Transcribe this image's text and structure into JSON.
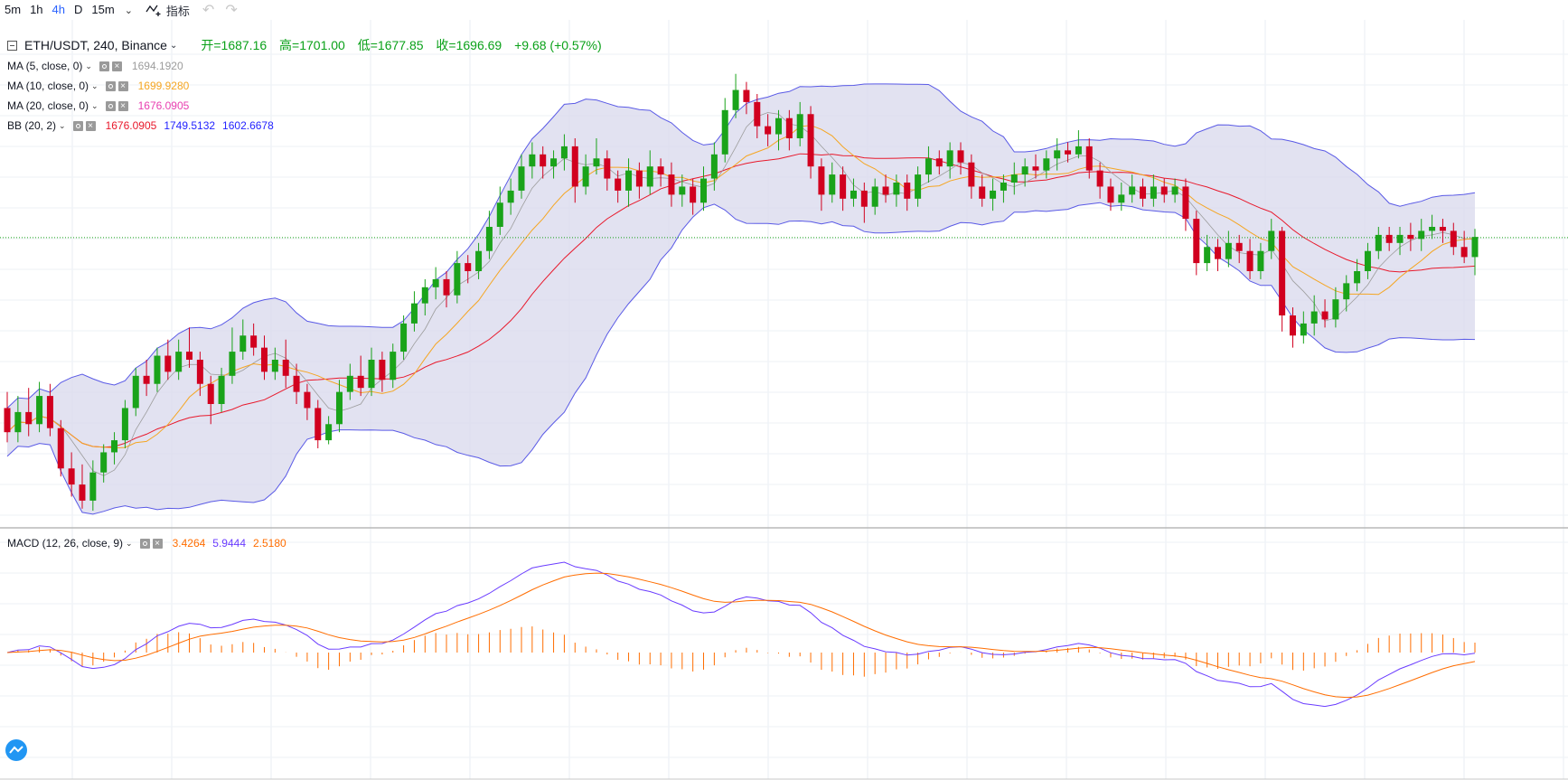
{
  "toolbar": {
    "intervals": [
      "5m",
      "1h",
      "4h",
      "D",
      "15m"
    ],
    "active_interval": "4h",
    "indicators_label": "指标"
  },
  "legend": {
    "symbol": "ETH/USDT, 240, Binance",
    "open": "开=1687.16",
    "high": "高=1701.00",
    "low": "低=1677.85",
    "close": "收=1696.69",
    "change": "+9.68 (+0.57%)"
  },
  "indicators": {
    "ma5": {
      "name": "MA (5, close, 0)",
      "value": "1694.1920",
      "color": "#9c9c9c"
    },
    "ma10": {
      "name": "MA (10, close, 0)",
      "value": "1699.9280",
      "color": "#f5a623"
    },
    "ma20": {
      "name": "MA (20, close, 0)",
      "value": "1676.0905",
      "color": "#e83fb0"
    },
    "bb": {
      "name": "BB (20, 2)",
      "basis": "1676.0905",
      "upper": "1749.5132",
      "lower": "1602.6678",
      "basis_color": "#e8192c",
      "upper_color": "#2424ff",
      "lower_color": "#2424ff"
    },
    "macd": {
      "name": "MACD (12, 26, close, 9)",
      "hist": "3.4264",
      "macd": "5.9444",
      "signal": "2.5180",
      "hist_color": "#ff6d00",
      "macd_color": "#6a3cff",
      "signal_color": "#ff6d00"
    }
  },
  "colors": {
    "up": "#1aa31a",
    "down": "#d1001f",
    "bb_fill": "#d8d8ec",
    "bb_band": "#5a5ae6",
    "price_line": "#1aa31a"
  },
  "chart_data": {
    "type": "candlestick",
    "symbol": "ETH/USDT",
    "interval": "240",
    "price_range": [
      1570,
      1790
    ],
    "last_close": 1696.69,
    "candles": [
      [
        1612,
        1600,
        1620,
        1595
      ],
      [
        1600,
        1610,
        1618,
        1595
      ],
      [
        1610,
        1604,
        1622,
        1598
      ],
      [
        1604,
        1618,
        1625,
        1600
      ],
      [
        1618,
        1602,
        1624,
        1598
      ],
      [
        1602,
        1582,
        1606,
        1578
      ],
      [
        1582,
        1574,
        1590,
        1568
      ],
      [
        1574,
        1566,
        1584,
        1562
      ],
      [
        1566,
        1580,
        1586,
        1561
      ],
      [
        1580,
        1590,
        1594,
        1575
      ],
      [
        1590,
        1596,
        1600,
        1584
      ],
      [
        1596,
        1612,
        1616,
        1592
      ],
      [
        1612,
        1628,
        1632,
        1608
      ],
      [
        1628,
        1624,
        1636,
        1618
      ],
      [
        1624,
        1638,
        1642,
        1620
      ],
      [
        1638,
        1630,
        1646,
        1626
      ],
      [
        1630,
        1640,
        1646,
        1626
      ],
      [
        1640,
        1636,
        1652,
        1632
      ],
      [
        1636,
        1624,
        1640,
        1618
      ],
      [
        1624,
        1614,
        1628,
        1604
      ],
      [
        1614,
        1628,
        1632,
        1610
      ],
      [
        1628,
        1640,
        1652,
        1624
      ],
      [
        1640,
        1648,
        1656,
        1636
      ],
      [
        1648,
        1642,
        1654,
        1638
      ],
      [
        1642,
        1630,
        1648,
        1626
      ],
      [
        1630,
        1636,
        1642,
        1626
      ],
      [
        1636,
        1628,
        1646,
        1622
      ],
      [
        1628,
        1620,
        1634,
        1614
      ],
      [
        1620,
        1612,
        1624,
        1606
      ],
      [
        1612,
        1596,
        1616,
        1592
      ],
      [
        1596,
        1604,
        1608,
        1594
      ],
      [
        1604,
        1620,
        1626,
        1600
      ],
      [
        1620,
        1628,
        1634,
        1616
      ],
      [
        1628,
        1622,
        1638,
        1618
      ],
      [
        1622,
        1636,
        1642,
        1618
      ],
      [
        1636,
        1626,
        1640,
        1620
      ],
      [
        1626,
        1640,
        1644,
        1622
      ],
      [
        1640,
        1654,
        1658,
        1636
      ],
      [
        1654,
        1664,
        1670,
        1650
      ],
      [
        1664,
        1672,
        1676,
        1658
      ],
      [
        1672,
        1676,
        1682,
        1666
      ],
      [
        1676,
        1668,
        1680,
        1662
      ],
      [
        1668,
        1684,
        1690,
        1664
      ],
      [
        1684,
        1680,
        1688,
        1674
      ],
      [
        1680,
        1690,
        1694,
        1676
      ],
      [
        1690,
        1702,
        1710,
        1686
      ],
      [
        1702,
        1714,
        1722,
        1698
      ],
      [
        1714,
        1720,
        1726,
        1708
      ],
      [
        1720,
        1732,
        1738,
        1716
      ],
      [
        1732,
        1738,
        1744,
        1726
      ],
      [
        1738,
        1732,
        1742,
        1726
      ],
      [
        1732,
        1736,
        1740,
        1726
      ],
      [
        1736,
        1742,
        1748,
        1730
      ],
      [
        1742,
        1722,
        1746,
        1714
      ],
      [
        1722,
        1732,
        1738,
        1718
      ],
      [
        1732,
        1736,
        1746,
        1728
      ],
      [
        1736,
        1726,
        1740,
        1720
      ],
      [
        1726,
        1720,
        1730,
        1714
      ],
      [
        1720,
        1730,
        1736,
        1712
      ],
      [
        1730,
        1722,
        1734,
        1716
      ],
      [
        1722,
        1732,
        1740,
        1718
      ],
      [
        1732,
        1728,
        1736,
        1722
      ],
      [
        1728,
        1718,
        1734,
        1712
      ],
      [
        1718,
        1722,
        1728,
        1712
      ],
      [
        1722,
        1714,
        1726,
        1708
      ],
      [
        1714,
        1726,
        1732,
        1710
      ],
      [
        1726,
        1738,
        1744,
        1720
      ],
      [
        1738,
        1760,
        1766,
        1734
      ],
      [
        1760,
        1770,
        1778,
        1756
      ],
      [
        1770,
        1764,
        1774,
        1758
      ],
      [
        1764,
        1752,
        1768,
        1746
      ],
      [
        1752,
        1748,
        1758,
        1742
      ],
      [
        1748,
        1756,
        1760,
        1740
      ],
      [
        1756,
        1746,
        1760,
        1740
      ],
      [
        1746,
        1758,
        1764,
        1742
      ],
      [
        1758,
        1732,
        1762,
        1726
      ],
      [
        1732,
        1718,
        1736,
        1710
      ],
      [
        1718,
        1728,
        1734,
        1714
      ],
      [
        1728,
        1716,
        1732,
        1710
      ],
      [
        1716,
        1720,
        1726,
        1712
      ],
      [
        1720,
        1712,
        1724,
        1704
      ],
      [
        1712,
        1722,
        1726,
        1708
      ],
      [
        1722,
        1718,
        1728,
        1714
      ],
      [
        1718,
        1724,
        1728,
        1712
      ],
      [
        1724,
        1716,
        1728,
        1710
      ],
      [
        1716,
        1728,
        1732,
        1712
      ],
      [
        1728,
        1736,
        1742,
        1724
      ],
      [
        1736,
        1732,
        1740,
        1728
      ],
      [
        1732,
        1740,
        1744,
        1726
      ],
      [
        1740,
        1734,
        1744,
        1728
      ],
      [
        1734,
        1722,
        1738,
        1716
      ],
      [
        1722,
        1716,
        1728,
        1712
      ],
      [
        1716,
        1720,
        1726,
        1710
      ],
      [
        1720,
        1724,
        1728,
        1714
      ],
      [
        1724,
        1728,
        1734,
        1718
      ],
      [
        1728,
        1732,
        1736,
        1722
      ],
      [
        1732,
        1730,
        1738,
        1726
      ],
      [
        1730,
        1736,
        1740,
        1726
      ],
      [
        1736,
        1740,
        1746,
        1730
      ],
      [
        1740,
        1738,
        1744,
        1734
      ],
      [
        1738,
        1742,
        1750,
        1736
      ],
      [
        1742,
        1730,
        1746,
        1726
      ],
      [
        1730,
        1722,
        1734,
        1716
      ],
      [
        1722,
        1714,
        1726,
        1710
      ],
      [
        1714,
        1718,
        1724,
        1710
      ],
      [
        1718,
        1722,
        1728,
        1714
      ],
      [
        1722,
        1716,
        1726,
        1712
      ],
      [
        1716,
        1722,
        1728,
        1712
      ],
      [
        1722,
        1718,
        1726,
        1714
      ],
      [
        1718,
        1722,
        1726,
        1714
      ],
      [
        1722,
        1706,
        1726,
        1700
      ],
      [
        1706,
        1684,
        1710,
        1678
      ],
      [
        1684,
        1692,
        1698,
        1680
      ],
      [
        1692,
        1686,
        1696,
        1680
      ],
      [
        1686,
        1694,
        1700,
        1682
      ],
      [
        1694,
        1690,
        1698,
        1684
      ],
      [
        1690,
        1680,
        1696,
        1676
      ],
      [
        1680,
        1690,
        1694,
        1676
      ],
      [
        1690,
        1700,
        1706,
        1686
      ],
      [
        1700,
        1658,
        1702,
        1650
      ],
      [
        1658,
        1648,
        1662,
        1642
      ],
      [
        1648,
        1654,
        1660,
        1644
      ],
      [
        1654,
        1660,
        1668,
        1648
      ],
      [
        1660,
        1656,
        1666,
        1652
      ],
      [
        1656,
        1666,
        1672,
        1652
      ],
      [
        1666,
        1674,
        1678,
        1660
      ],
      [
        1674,
        1680,
        1686,
        1670
      ],
      [
        1680,
        1690,
        1694,
        1676
      ],
      [
        1690,
        1698,
        1702,
        1686
      ],
      [
        1698,
        1694,
        1702,
        1690
      ],
      [
        1694,
        1698,
        1702,
        1688
      ],
      [
        1698,
        1696,
        1704,
        1690
      ],
      [
        1696,
        1700,
        1706,
        1690
      ],
      [
        1700,
        1702,
        1708,
        1696
      ],
      [
        1702,
        1700,
        1706,
        1694
      ],
      [
        1700,
        1692,
        1704,
        1688
      ],
      [
        1692,
        1687,
        1700,
        1684
      ],
      [
        1687,
        1697,
        1701,
        1678
      ]
    ]
  }
}
